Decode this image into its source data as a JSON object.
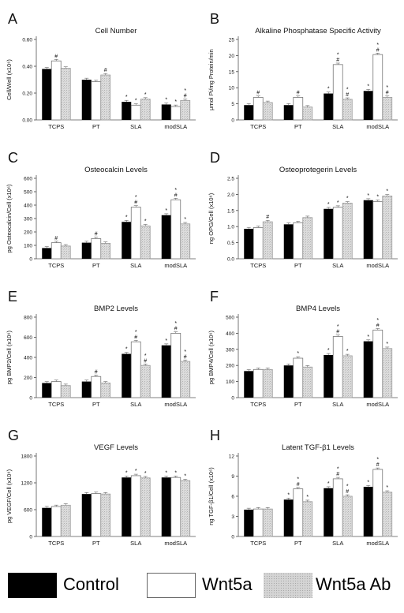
{
  "legend": {
    "items": [
      {
        "label": "Control",
        "color": "#000000",
        "pattern": "solid"
      },
      {
        "label": "Wnt5a",
        "color": "#ffffff",
        "pattern": "outline"
      },
      {
        "label": "Wnt5a Ab",
        "color": "#d0d0d0",
        "pattern": "stipple"
      }
    ]
  },
  "chart_data": [
    {
      "panel": "A",
      "type": "bar",
      "title": "Cell Number",
      "ylabel": "Cell/Well (x10⁶)",
      "categories": [
        "TCPS",
        "PT",
        "SLA",
        "modSLA"
      ],
      "ylim": [
        0,
        0.6
      ],
      "yticks": [
        "0.00",
        "0.20",
        "0.40",
        "0.60"
      ],
      "series": [
        {
          "name": "Control",
          "values": [
            0.38,
            0.3,
            0.135,
            0.115
          ]
        },
        {
          "name": "Wnt5a",
          "values": [
            0.44,
            0.285,
            0.11,
            0.1
          ]
        },
        {
          "name": "Wnt5a Ab",
          "values": [
            0.385,
            0.335,
            0.155,
            0.145
          ]
        }
      ],
      "markers": [
        [
          "",
          "#",
          ""
        ],
        [
          "",
          "",
          "#"
        ],
        [
          "*",
          "*",
          "*"
        ],
        [
          "*",
          "*",
          "*#"
        ]
      ]
    },
    {
      "panel": "B",
      "type": "bar",
      "title": "Alkaline Phosphatase Specific Activity",
      "ylabel": "μmol Pi/mg Protein/min",
      "categories": [
        "TCPS",
        "PT",
        "SLA",
        "modSLA"
      ],
      "ylim": [
        0,
        25
      ],
      "yticks": [
        "0",
        "5",
        "10",
        "15",
        "20",
        "25"
      ],
      "series": [
        {
          "name": "Control",
          "values": [
            4.6,
            4.6,
            8.2,
            9
          ]
        },
        {
          "name": "Wnt5a",
          "values": [
            7,
            7,
            17.2,
            20.3
          ]
        },
        {
          "name": "Wnt5a Ab",
          "values": [
            5.4,
            4,
            6.4,
            7
          ]
        }
      ],
      "markers": [
        [
          "",
          "#",
          ""
        ],
        [
          "",
          "#",
          ""
        ],
        [
          "*",
          "*#",
          "*#"
        ],
        [
          "*",
          "*#",
          "*#"
        ]
      ]
    },
    {
      "panel": "C",
      "type": "bar",
      "title": "Osteocalcin Levels",
      "ylabel": "pg Osteocalcin/Cell (x10⁶)",
      "categories": [
        "TCPS",
        "PT",
        "SLA",
        "modSLA"
      ],
      "ylim": [
        0,
        600
      ],
      "yticks": [
        "0",
        "100",
        "200",
        "300",
        "400",
        "500",
        "600"
      ],
      "series": [
        {
          "name": "Control",
          "values": [
            80,
            120,
            275,
            325
          ]
        },
        {
          "name": "Wnt5a",
          "values": [
            120,
            150,
            385,
            440
          ]
        },
        {
          "name": "Wnt5a Ab",
          "values": [
            95,
            115,
            245,
            260
          ]
        }
      ],
      "markers": [
        [
          "",
          "#",
          ""
        ],
        [
          "",
          "#",
          ""
        ],
        [
          "*",
          "*#",
          "*"
        ],
        [
          "*",
          "*#",
          "*"
        ]
      ]
    },
    {
      "panel": "D",
      "type": "bar",
      "title": "Osteoprotegerin Levels",
      "ylabel": "ng OPG/Cell (x10⁶)",
      "categories": [
        "TCPS",
        "PT",
        "SLA",
        "modSLA"
      ],
      "ylim": [
        0,
        2.5
      ],
      "yticks": [
        "0.0",
        "0.5",
        "1.0",
        "1.5",
        "2.0",
        "2.5"
      ],
      "series": [
        {
          "name": "Control",
          "values": [
            0.93,
            1.07,
            1.55,
            1.82
          ]
        },
        {
          "name": "Wnt5a",
          "values": [
            0.97,
            1.12,
            1.6,
            1.78
          ]
        },
        {
          "name": "Wnt5a Ab",
          "values": [
            1.15,
            1.28,
            1.73,
            1.95
          ]
        }
      ],
      "markers": [
        [
          "",
          "",
          "#"
        ],
        [
          "",
          "",
          ""
        ],
        [
          "*",
          "*",
          "*"
        ],
        [
          "*",
          "*",
          "*"
        ]
      ]
    },
    {
      "panel": "E",
      "type": "bar",
      "title": "BMP2 Levels",
      "ylabel": "pg BMP2/Cell (x10⁶)",
      "categories": [
        "TCPS",
        "PT",
        "SLA",
        "modSLA"
      ],
      "ylim": [
        0,
        800
      ],
      "yticks": [
        "0",
        "200",
        "400",
        "600",
        "800"
      ],
      "series": [
        {
          "name": "Control",
          "values": [
            145,
            160,
            435,
            520
          ]
        },
        {
          "name": "Wnt5a",
          "values": [
            160,
            210,
            555,
            640
          ]
        },
        {
          "name": "Wnt5a Ab",
          "values": [
            120,
            145,
            320,
            360
          ]
        }
      ],
      "markers": [
        [
          "",
          "",
          ""
        ],
        [
          "",
          "#",
          ""
        ],
        [
          "*",
          "*#",
          "*#"
        ],
        [
          "*",
          "*#",
          "*#"
        ]
      ]
    },
    {
      "panel": "F",
      "type": "bar",
      "title": "BMP4 Levels",
      "ylabel": "pg BMP4/Cell (x10⁶)",
      "categories": [
        "TCPS",
        "PT",
        "SLA",
        "modSLA"
      ],
      "ylim": [
        0,
        500
      ],
      "yticks": [
        "0",
        "100",
        "200",
        "300",
        "400",
        "500"
      ],
      "series": [
        {
          "name": "Control",
          "values": [
            165,
            200,
            265,
            350
          ]
        },
        {
          "name": "Wnt5a",
          "values": [
            175,
            245,
            380,
            420
          ]
        },
        {
          "name": "Wnt5a Ab",
          "values": [
            175,
            190,
            260,
            305
          ]
        }
      ],
      "markers": [
        [
          "",
          "",
          ""
        ],
        [
          "",
          "*",
          ""
        ],
        [
          "*",
          "*#",
          "*"
        ],
        [
          "*",
          "*#",
          "*"
        ]
      ]
    },
    {
      "panel": "G",
      "type": "bar",
      "title": "VEGF Levels",
      "ylabel": "pg VEGF/Cell (x10⁶)",
      "categories": [
        "TCPS",
        "PT",
        "SLA",
        "modSLA"
      ],
      "ylim": [
        0,
        1800
      ],
      "yticks": [
        "0",
        "600",
        "1200",
        "1800"
      ],
      "series": [
        {
          "name": "Control",
          "values": [
            640,
            950,
            1320,
            1320
          ]
        },
        {
          "name": "Wnt5a",
          "values": [
            670,
            960,
            1360,
            1320
          ]
        },
        {
          "name": "Wnt5a Ab",
          "values": [
            700,
            950,
            1310,
            1250
          ]
        }
      ],
      "markers": [
        [
          "",
          "",
          ""
        ],
        [
          "",
          "",
          ""
        ],
        [
          "*",
          "*",
          "*"
        ],
        [
          "*",
          "*",
          "*"
        ]
      ]
    },
    {
      "panel": "H",
      "type": "bar",
      "title": "Latent TGF-β1 Levels",
      "ylabel": "ng TGF-β1/Cell (x10⁶)",
      "categories": [
        "TCPS",
        "PT",
        "SLA",
        "modSLA"
      ],
      "ylim": [
        0,
        12
      ],
      "yticks": [
        "0",
        "3",
        "6",
        "9",
        "12"
      ],
      "series": [
        {
          "name": "Control",
          "values": [
            4,
            5.5,
            7.2,
            7.4
          ]
        },
        {
          "name": "Wnt5a",
          "values": [
            4.1,
            7.1,
            8.6,
            10
          ]
        },
        {
          "name": "Wnt5a Ab",
          "values": [
            4.1,
            5.2,
            6,
            6.6
          ]
        }
      ],
      "markers": [
        [
          "",
          "",
          ""
        ],
        [
          "*",
          "*#",
          "*"
        ],
        [
          "*",
          "*#",
          "*#"
        ],
        [
          "*",
          "*#",
          "*"
        ]
      ]
    }
  ]
}
